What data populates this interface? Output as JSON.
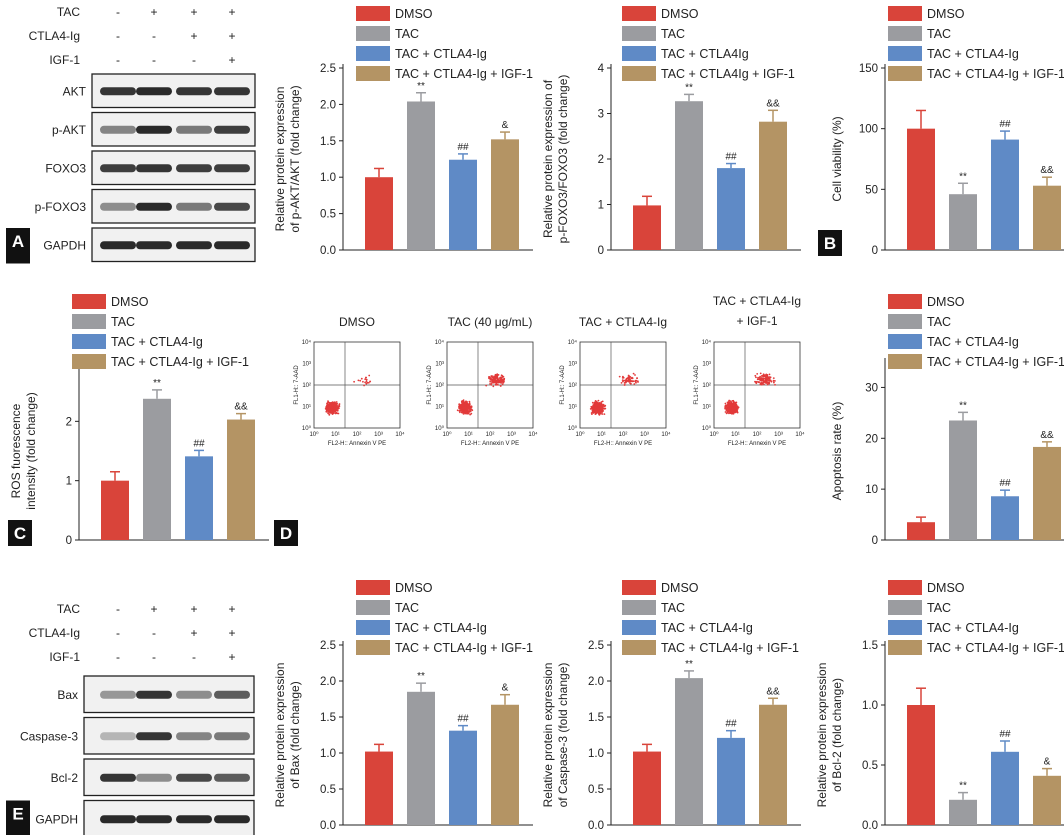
{
  "colors": {
    "dmso": "#d9443a",
    "tac": "#9b9ca0",
    "ctla": "#5f8ac6",
    "igf": "#b49464",
    "blot_bg": "#f1f1f1",
    "band": "#2a2a2a"
  },
  "chart_data": [
    {
      "id": "A",
      "type": "bar",
      "ylabel": "Relative protein expression\nof p-AKT/AKT (fold change)",
      "ylim": [
        0,
        2.5
      ],
      "ticks": [
        "0.0",
        "0.5",
        "1.0",
        "1.5",
        "2.0",
        "2.5"
      ],
      "legend": [
        "DMSO",
        "TAC",
        "TAC + CTLA4-Ig",
        "TAC + CTLA4-Ig + IGF-1"
      ],
      "values": [
        1.0,
        2.04,
        1.24,
        1.52
      ],
      "errors": [
        0.12,
        0.12,
        0.08,
        0.1
      ],
      "sig": [
        "",
        "**",
        "##",
        "&"
      ]
    },
    {
      "id": "A2",
      "type": "bar",
      "ylabel": "Relative protein expression of\np-FOXO3/FOXO3 (fold change)",
      "ylim": [
        0,
        4
      ],
      "ticks": [
        "0",
        "1",
        "2",
        "3",
        "4"
      ],
      "legend": [
        "DMSO",
        "TAC",
        "TAC + CTLA4Ig",
        "TAC + CTLA4Ig + IGF-1"
      ],
      "values": [
        0.98,
        3.27,
        1.8,
        2.82
      ],
      "errors": [
        0.2,
        0.15,
        0.1,
        0.25
      ],
      "sig": [
        "",
        "**",
        "##",
        "&&"
      ]
    },
    {
      "id": "B",
      "type": "bar",
      "ylabel": "Cell viability (%)",
      "ylim": [
        0,
        150
      ],
      "ticks": [
        "0",
        "50",
        "100",
        "150"
      ],
      "legend": [
        "DMSO",
        "TAC",
        "TAC + CTLA4-Ig",
        "TAC + CTLA4-Ig + IGF-1"
      ],
      "values": [
        100,
        46,
        91,
        53
      ],
      "errors": [
        15,
        9,
        7,
        7
      ],
      "sig": [
        "",
        "**",
        "##",
        "&&"
      ]
    },
    {
      "id": "C",
      "type": "bar",
      "ylabel": "ROS fuorescence\nintensity (fold change)",
      "ylim": [
        0,
        3
      ],
      "ticks": [
        "0",
        "1",
        "2"
      ],
      "legend": [
        "DMSO",
        "TAC",
        "TAC + CTLA4-Ig",
        "TAC + CTLA4-Ig + IGF-1"
      ],
      "values": [
        1.0,
        2.38,
        1.41,
        2.03
      ],
      "errors": [
        0.15,
        0.15,
        0.1,
        0.1
      ],
      "sig": [
        "",
        "**",
        "##",
        "&&"
      ]
    },
    {
      "id": "D",
      "type": "bar",
      "ylabel": "Apoptosis rate (%)",
      "ylim": [
        0,
        35
      ],
      "ticks": [
        "0",
        "10",
        "20",
        "30"
      ],
      "legend": [
        "DMSO",
        "TAC",
        "TAC + CTLA4-Ig",
        "TAC + CTLA4-Ig + IGF-1"
      ],
      "values": [
        3.5,
        23.5,
        8.6,
        18.3
      ],
      "errors": [
        1.0,
        1.6,
        1.2,
        1.0
      ],
      "sig": [
        "",
        "**",
        "##",
        "&&"
      ]
    },
    {
      "id": "E1",
      "type": "bar",
      "ylabel": "Relative protein expression\nof Bax (fold change)",
      "ylim": [
        0,
        2.5
      ],
      "ticks": [
        "0.0",
        "0.5",
        "1.0",
        "1.5",
        "2.0",
        "2.5"
      ],
      "legend": [
        "DMSO",
        "TAC",
        "TAC + CTLA4-Ig",
        "TAC + CTLA4-Ig + IGF-1"
      ],
      "values": [
        1.02,
        1.85,
        1.31,
        1.67
      ],
      "errors": [
        0.1,
        0.12,
        0.07,
        0.14
      ],
      "sig": [
        "",
        "**",
        "##",
        "&"
      ]
    },
    {
      "id": "E2",
      "type": "bar",
      "ylabel": "Relative protein expression\nof Caspase-3 (fold change)",
      "ylim": [
        0,
        2.5
      ],
      "ticks": [
        "0.0",
        "0.5",
        "1.0",
        "1.5",
        "2.0",
        "2.5"
      ],
      "legend": [
        "DMSO",
        "TAC",
        "TAC + CTLA4-Ig",
        "TAC + CTLA4-Ig + IGF-1"
      ],
      "values": [
        1.02,
        2.04,
        1.21,
        1.67
      ],
      "errors": [
        0.1,
        0.1,
        0.1,
        0.09
      ],
      "sig": [
        "",
        "**",
        "##",
        "&&"
      ]
    },
    {
      "id": "E3",
      "type": "bar",
      "ylabel": "Relative protein expression\nof Bcl-2 (fold change)",
      "ylim": [
        0,
        1.5
      ],
      "ticks": [
        "0.0",
        "0.5",
        "1.0",
        "1.5"
      ],
      "legend": [
        "DMSO",
        "TAC",
        "TAC + CTLA4-Ig",
        "TAC + CTLA4-Ig + IGF-1"
      ],
      "values": [
        1.0,
        0.21,
        0.61,
        0.41
      ],
      "errors": [
        0.14,
        0.06,
        0.09,
        0.06
      ],
      "sig": [
        "",
        "**",
        "##",
        "&"
      ]
    }
  ],
  "blots": {
    "A": {
      "conditions": [
        {
          "name": "TAC",
          "signs": [
            "-",
            "+",
            "+",
            "+"
          ]
        },
        {
          "name": "CTLA4-Ig",
          "signs": [
            "-",
            "-",
            "+",
            "+"
          ]
        },
        {
          "name": "IGF-1",
          "signs": [
            "-",
            "-",
            "-",
            "+"
          ]
        }
      ],
      "rows": [
        "AKT",
        "p-AKT",
        "FOXO3",
        "p-FOXO3",
        "GAPDH"
      ]
    },
    "E": {
      "conditions": [
        {
          "name": "TAC",
          "signs": [
            "-",
            "+",
            "+",
            "+"
          ]
        },
        {
          "name": "CTLA4-Ig",
          "signs": [
            "-",
            "-",
            "+",
            "+"
          ]
        },
        {
          "name": "IGF-1",
          "signs": [
            "-",
            "-",
            "-",
            "+"
          ]
        }
      ],
      "rows": [
        "Bax",
        "Caspase-3",
        "Bcl-2",
        "GAPDH"
      ]
    }
  },
  "flow": {
    "titles": [
      "DMSO",
      "TAC (40 μg/mL)",
      "TAC + CTLA4-Ig",
      "TAC + CTLA4-Ig\n+ IGF-1"
    ],
    "xlabel": "FL2-H:: Annexin V PE",
    "ylabel": "FL1-H:: 7-AAD",
    "ticks": [
      "10⁰",
      "10¹",
      "10²",
      "10³",
      "10⁴"
    ]
  },
  "panel_letters": [
    "A",
    "B",
    "C",
    "D",
    "E"
  ]
}
